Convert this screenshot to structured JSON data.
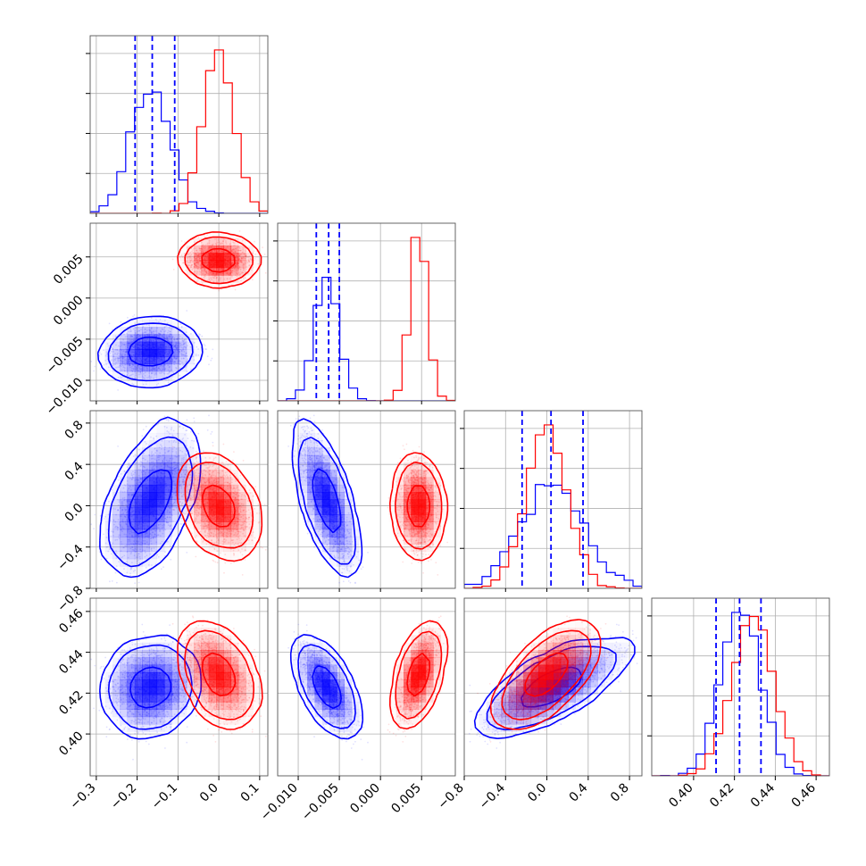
{
  "chart_data": {
    "type": "corner",
    "params": [
      {
        "ticks": [
          "−0.3",
          "−0.2",
          "−0.1",
          "0.0",
          "0.1"
        ],
        "tick_values": [
          -0.3,
          -0.2,
          -0.1,
          0.0,
          0.1
        ],
        "range": [
          -0.315,
          0.12
        ]
      },
      {
        "ticks": [
          "−0.010",
          "−0.005",
          "0.000",
          "0.005"
        ],
        "tick_values": [
          -0.01,
          -0.005,
          0.0,
          0.005
        ],
        "range": [
          -0.0125,
          0.0091
        ]
      },
      {
        "ticks": [
          "−0.8",
          "−0.4",
          "0.0",
          "0.4",
          "0.8"
        ],
        "tick_values": [
          -0.8,
          -0.4,
          0.0,
          0.4,
          0.8
        ],
        "range": [
          -0.8,
          0.92
        ]
      },
      {
        "ticks": [
          "0.40",
          "0.42",
          "0.44",
          "0.46"
        ],
        "tick_values": [
          0.4,
          0.42,
          0.44,
          0.46
        ],
        "range": [
          0.3795,
          0.4665
        ]
      }
    ],
    "colors": {
      "blue": "#0000ff",
      "red": "#ff0000"
    },
    "blue": {
      "mean": [
        -0.165,
        -0.0065,
        0.05,
        0.423
      ],
      "sd": [
        0.048,
        0.0014,
        0.3,
        0.0095
      ],
      "corr": [
        [
          0,
          1,
          0.1
        ],
        [
          0,
          2,
          0.55
        ],
        [
          0,
          3,
          0.1
        ],
        [
          1,
          2,
          -0.75
        ],
        [
          1,
          3,
          -0.7
        ],
        [
          2,
          3,
          0.75
        ]
      ],
      "quantiles": [
        [
          -0.205,
          -0.163,
          -0.108
        ],
        [
          -0.0078,
          -0.0063,
          -0.005
        ],
        [
          -0.24,
          0.04,
          0.35
        ],
        [
          0.411,
          0.4225,
          0.433
        ]
      ]
    },
    "red": {
      "mean": [
        0.0,
        0.0046,
        0.0,
        0.429
      ],
      "sd": [
        0.036,
        0.001,
        0.2,
        0.0092
      ],
      "corr": [
        [
          0,
          1,
          0.0
        ],
        [
          0,
          2,
          -0.35
        ],
        [
          0,
          3,
          -0.4
        ],
        [
          1,
          2,
          -0.1
        ],
        [
          1,
          3,
          0.7
        ],
        [
          2,
          3,
          0.75
        ]
      ]
    },
    "grid": true
  }
}
